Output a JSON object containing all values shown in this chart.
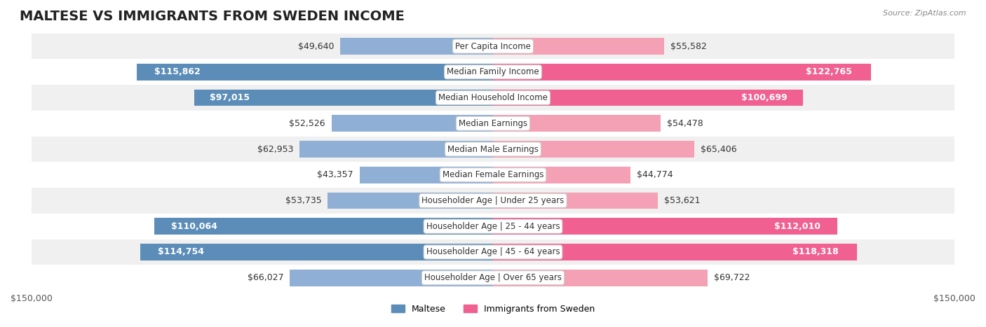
{
  "title": "MALTESE VS IMMIGRANTS FROM SWEDEN INCOME",
  "source": "Source: ZipAtlas.com",
  "categories": [
    "Per Capita Income",
    "Median Family Income",
    "Median Household Income",
    "Median Earnings",
    "Median Male Earnings",
    "Median Female Earnings",
    "Householder Age | Under 25 years",
    "Householder Age | 25 - 44 years",
    "Householder Age | 45 - 64 years",
    "Householder Age | Over 65 years"
  ],
  "maltese_values": [
    49640,
    115862,
    97015,
    52526,
    62953,
    43357,
    53735,
    110064,
    114754,
    66027
  ],
  "sweden_values": [
    55582,
    122765,
    100699,
    54478,
    65406,
    44774,
    53621,
    112010,
    118318,
    69722
  ],
  "maltese_labels": [
    "$49,640",
    "$115,862",
    "$97,015",
    "$52,526",
    "$62,953",
    "$43,357",
    "$53,735",
    "$110,064",
    "$114,754",
    "$66,027"
  ],
  "sweden_labels": [
    "$55,582",
    "$122,765",
    "$100,699",
    "$54,478",
    "$65,406",
    "$44,774",
    "$53,621",
    "$112,010",
    "$118,318",
    "$69,722"
  ],
  "maltese_color": "#90afd4",
  "sweden_color": "#f4a0b5",
  "maltese_color_bold": "#5b8db8",
  "sweden_color_bold": "#f06090",
  "row_bg_light": "#f0f0f0",
  "row_bg_white": "#ffffff",
  "max_value": 150000,
  "xlabel_left": "$150,000",
  "xlabel_right": "$150,000",
  "legend_maltese": "Maltese",
  "legend_sweden": "Immigrants from Sweden",
  "title_fontsize": 14,
  "label_fontsize": 9,
  "category_fontsize": 8.5,
  "axis_fontsize": 9
}
